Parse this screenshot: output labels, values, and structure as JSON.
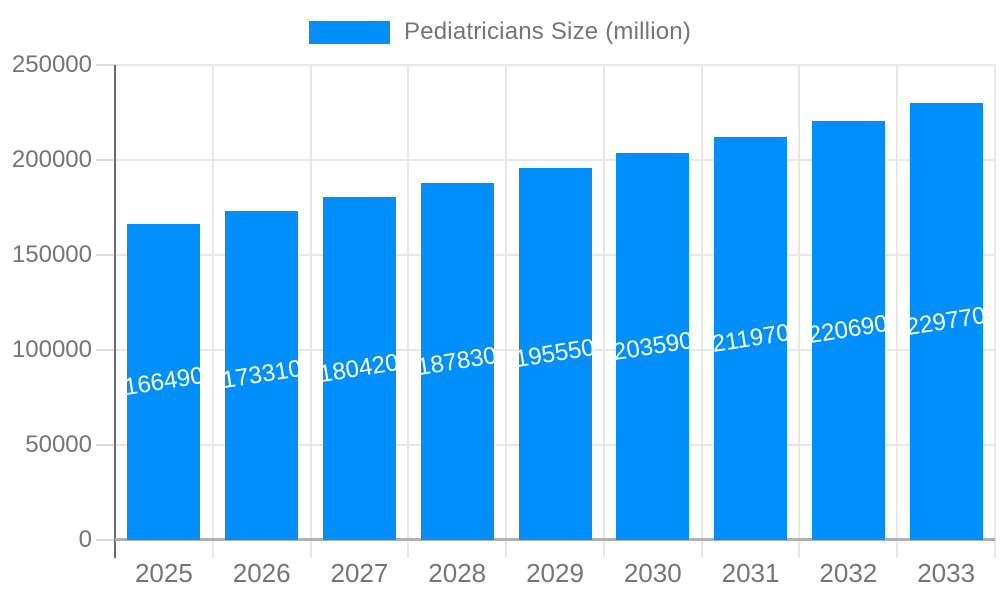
{
  "legend": {
    "label": "Pediatricians Size (million)"
  },
  "colors": {
    "bar": "#008FFB",
    "axis_text": "#757575",
    "grid": "#e7e7e7",
    "baseline": "#b1b1b1",
    "axis_line": "#6b6b6b",
    "tick_stub": "#dcdcdc",
    "value_label": "#ffffff",
    "background": "#ffffff"
  },
  "chart_data": {
    "type": "bar",
    "title": "",
    "categories": [
      "2025",
      "2026",
      "2027",
      "2028",
      "2029",
      "2030",
      "2031",
      "2032",
      "2033"
    ],
    "series": [
      {
        "name": "Pediatricians Size (million)",
        "values": [
          166490,
          173310,
          180420,
          187830,
          195550,
          203590,
          211970,
          220690,
          229770
        ]
      }
    ],
    "xlabel": "",
    "ylabel": "",
    "ylim": [
      0,
      250000
    ],
    "yticks": [
      0,
      50000,
      100000,
      150000,
      200000,
      250000
    ],
    "grid": true,
    "legend_position": "top",
    "value_label_position": "inside-center",
    "value_label_rotation_deg": -9
  }
}
